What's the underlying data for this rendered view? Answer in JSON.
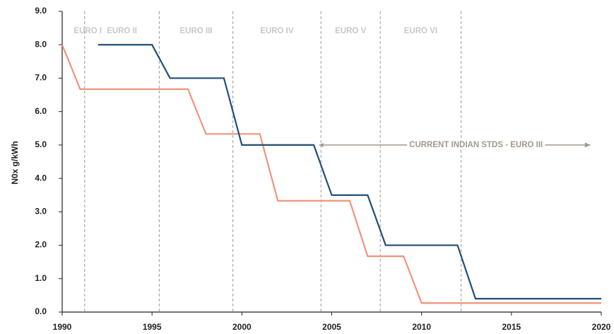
{
  "chart_data": {
    "type": "line",
    "y_label": "N0x g/kWh",
    "xlim": [
      1990,
      2020
    ],
    "xticks": [
      1990,
      1995,
      2000,
      2005,
      2010,
      2015,
      2020
    ],
    "ylim": [
      0,
      9
    ],
    "yticks": [
      {
        "value": 0,
        "label": "0.0"
      },
      {
        "value": 1,
        "label": "1.0"
      },
      {
        "value": 2,
        "label": "2.0"
      },
      {
        "value": 3,
        "label": "3.0"
      },
      {
        "value": 4,
        "label": "4.0"
      },
      {
        "value": 5,
        "label": "5.0"
      },
      {
        "value": 6,
        "label": "6.0"
      },
      {
        "value": 7,
        "label": "7.0"
      },
      {
        "value": 8,
        "label": "8.0"
      },
      {
        "value": 9,
        "label": "9.0"
      }
    ],
    "series": [
      {
        "color": "#1f4e79",
        "x": [
          1992,
          1995,
          1996,
          1999,
          2000,
          2004,
          2005,
          2007,
          2008,
          2012,
          2013,
          2020
        ],
        "values": [
          8,
          8,
          7,
          7,
          5,
          5,
          3.5,
          3.5,
          2,
          2,
          0.4,
          0.4
        ]
      },
      {
        "color": "#f0937a",
        "x": [
          1990,
          1991,
          1997,
          1998,
          2001,
          2002,
          2006,
          2007,
          2009,
          2010,
          2020
        ],
        "values": [
          8,
          6.67,
          6.67,
          5.33,
          5.33,
          3.33,
          3.33,
          1.67,
          1.67,
          0.27,
          0.27
        ]
      }
    ],
    "stages": {
      "labels": [
        "EURO I",
        "EURO II",
        "EURO III",
        "EURO IV",
        "EURO V",
        "EURO VI"
      ],
      "bounds": [
        1991.25,
        1995.4,
        1999.5,
        2004.4,
        2007.7,
        2012.2,
        2020
      ]
    },
    "annotation": {
      "text": "CURRENT INDIAN STDS - EURO III",
      "x": [
        2004.3,
        2019.4
      ],
      "y": 5
    }
  }
}
